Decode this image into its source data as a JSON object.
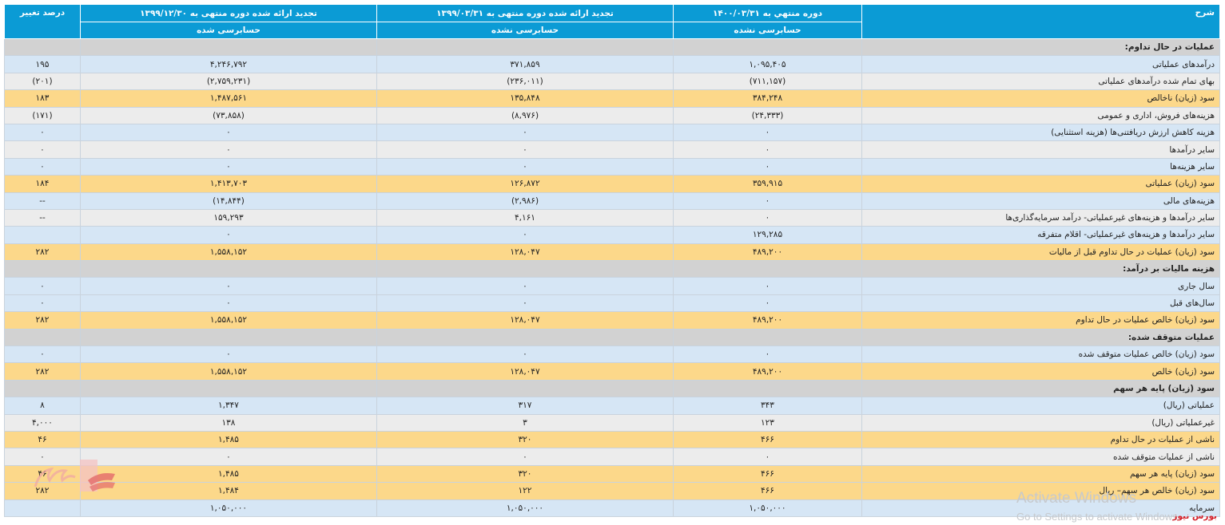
{
  "header": {
    "desc": "شرح",
    "col1": "دوره منتهي به ۱۴۰۰/۰۳/۳۱",
    "col1_sub": "حسابرسی نشده",
    "col2": "تجدید ارائه شده دوره منتهی به ۱۳۹۹/۰۳/۳۱",
    "col2_sub": "حسابرسی نشده",
    "col3": "تجدید ارائه شده دوره منتهی به ۱۳۹۹/۱۲/۳۰",
    "col3_sub": "حسابرسی شده",
    "col4": "درصد تغییر"
  },
  "rows": [
    {
      "type": "sect",
      "desc": "عملیات در حال تداوم:",
      "c1": "",
      "c2": "",
      "c3": "",
      "c4": ""
    },
    {
      "type": "light",
      "desc": "درآمدهای عملیاتی",
      "c1": "۱,۰۹۵,۴۰۵",
      "c2": "۳۷۱,۸۵۹",
      "c3": "۴,۲۴۶,۷۹۲",
      "c4": "۱۹۵"
    },
    {
      "type": "gray",
      "desc": "بهای تمام شده درآمدهای عملیاتی",
      "c1": "(۷۱۱,۱۵۷)",
      "c2": "(۲۳۶,۰۱۱)",
      "c3": "(۲,۷۵۹,۲۳۱)",
      "c4": "(۲۰۱)"
    },
    {
      "type": "gold",
      "desc": "سود (زیان) ناخالص",
      "c1": "۳۸۴,۲۴۸",
      "c2": "۱۳۵,۸۴۸",
      "c3": "۱,۴۸۷,۵۶۱",
      "c4": "۱۸۳"
    },
    {
      "type": "gray",
      "desc": "هزینه‌های فروش، اداری و عمومی",
      "c1": "(۲۴,۳۳۳)",
      "c2": "(۸,۹۷۶)",
      "c3": "(۷۳,۸۵۸)",
      "c4": "(۱۷۱)"
    },
    {
      "type": "light",
      "desc": "هزینه کاهش ارزش دریافتنی‌ها (هزینه استثنایی)",
      "c1": "۰",
      "c2": "۰",
      "c3": "۰",
      "c4": "۰"
    },
    {
      "type": "gray",
      "desc": "سایر درآمدها",
      "c1": "۰",
      "c2": "۰",
      "c3": "۰",
      "c4": "۰"
    },
    {
      "type": "light",
      "desc": "سایر هزینه‌ها",
      "c1": "۰",
      "c2": "۰",
      "c3": "۰",
      "c4": "۰"
    },
    {
      "type": "gold",
      "desc": "سود (زیان) عملیاتی",
      "c1": "۳۵۹,۹۱۵",
      "c2": "۱۲۶,۸۷۲",
      "c3": "۱,۴۱۳,۷۰۳",
      "c4": "۱۸۴"
    },
    {
      "type": "light",
      "desc": "هزینه‌های مالی",
      "c1": "۰",
      "c2": "(۲,۹۸۶)",
      "c3": "(۱۴,۸۴۴)",
      "c4": "--"
    },
    {
      "type": "gray",
      "desc": "سایر درآمدها و هزینه‌های غیرعملیاتی- درآمد سرمایه‌گذاری‌ها",
      "c1": "۰",
      "c2": "۴,۱۶۱",
      "c3": "۱۵۹,۲۹۳",
      "c4": "--"
    },
    {
      "type": "light",
      "desc": "سایر درآمدها و هزینه‌های غیرعملیاتی- اقلام متفرقه",
      "c1": "۱۲۹,۲۸۵",
      "c2": "۰",
      "c3": "۰",
      "c4": ""
    },
    {
      "type": "gold",
      "desc": "سود (زیان) عملیات در حال تداوم قبل از مالیات",
      "c1": "۴۸۹,۲۰۰",
      "c2": "۱۲۸,۰۴۷",
      "c3": "۱,۵۵۸,۱۵۲",
      "c4": "۲۸۲"
    },
    {
      "type": "sect",
      "desc": "هزینه مالیات بر درآمد:",
      "c1": "",
      "c2": "",
      "c3": "",
      "c4": ""
    },
    {
      "type": "light",
      "desc": "سال جاری",
      "c1": "۰",
      "c2": "۰",
      "c3": "۰",
      "c4": "۰"
    },
    {
      "type": "light",
      "desc": "سال‌های قبل",
      "c1": "۰",
      "c2": "۰",
      "c3": "۰",
      "c4": "۰"
    },
    {
      "type": "gold",
      "desc": "سود (زیان) خالص عملیات در حال تداوم",
      "c1": "۴۸۹,۲۰۰",
      "c2": "۱۲۸,۰۴۷",
      "c3": "۱,۵۵۸,۱۵۲",
      "c4": "۲۸۲"
    },
    {
      "type": "sect",
      "desc": "عملیات متوقف شده:",
      "c1": "",
      "c2": "",
      "c3": "",
      "c4": ""
    },
    {
      "type": "light",
      "desc": "سود (زیان) خالص عملیات متوقف شده",
      "c1": "۰",
      "c2": "۰",
      "c3": "۰",
      "c4": "۰"
    },
    {
      "type": "gold",
      "desc": "سود (زیان) خالص",
      "c1": "۴۸۹,۲۰۰",
      "c2": "۱۲۸,۰۴۷",
      "c3": "۱,۵۵۸,۱۵۲",
      "c4": "۲۸۲"
    },
    {
      "type": "sect",
      "desc": "سود (زیان) پایه هر سهم",
      "c1": "",
      "c2": "",
      "c3": "",
      "c4": ""
    },
    {
      "type": "light",
      "desc": "عملیاتی (ریال)",
      "c1": "۳۴۳",
      "c2": "۳۱۷",
      "c3": "۱,۳۴۷",
      "c4": "۸"
    },
    {
      "type": "gray",
      "desc": "غیرعملیاتی (ریال)",
      "c1": "۱۲۳",
      "c2": "۳",
      "c3": "۱۳۸",
      "c4": "۴,۰۰۰"
    },
    {
      "type": "gold",
      "desc": "ناشی از عملیات در حال تداوم",
      "c1": "۴۶۶",
      "c2": "۳۲۰",
      "c3": "۱,۴۸۵",
      "c4": "۴۶"
    },
    {
      "type": "gray",
      "desc": "ناشی از عملیات متوقف شده",
      "c1": "۰",
      "c2": "۰",
      "c3": "۰",
      "c4": "۰"
    },
    {
      "type": "gold",
      "desc": "سود (زیان) پایه هر سهم",
      "c1": "۴۶۶",
      "c2": "۳۲۰",
      "c3": "۱,۴۸۵",
      "c4": "۴۶"
    },
    {
      "type": "gold",
      "desc": "سود (زیان) خالص هر سهم– ریال",
      "c1": "۴۶۶",
      "c2": "۱۲۲",
      "c3": "۱,۴۸۴",
      "c4": "۲۸۲"
    },
    {
      "type": "light",
      "desc": "سرمایه",
      "c1": "۱,۰۵۰,۰۰۰",
      "c2": "۱,۰۵۰,۰۰۰",
      "c3": "۱,۰۵۰,۰۰۰",
      "c4": ""
    }
  ],
  "watermark": {
    "title": "Activate Windows",
    "subtitle": "Go to Settings to activate Windows."
  },
  "brand": "بورس نیوز",
  "colors": {
    "header": "#0b9bd5",
    "light": "#d6e6f5",
    "gray": "#ececec",
    "gold": "#fcd88a",
    "section": "#d2d2d2",
    "negative": "#e0201b"
  }
}
